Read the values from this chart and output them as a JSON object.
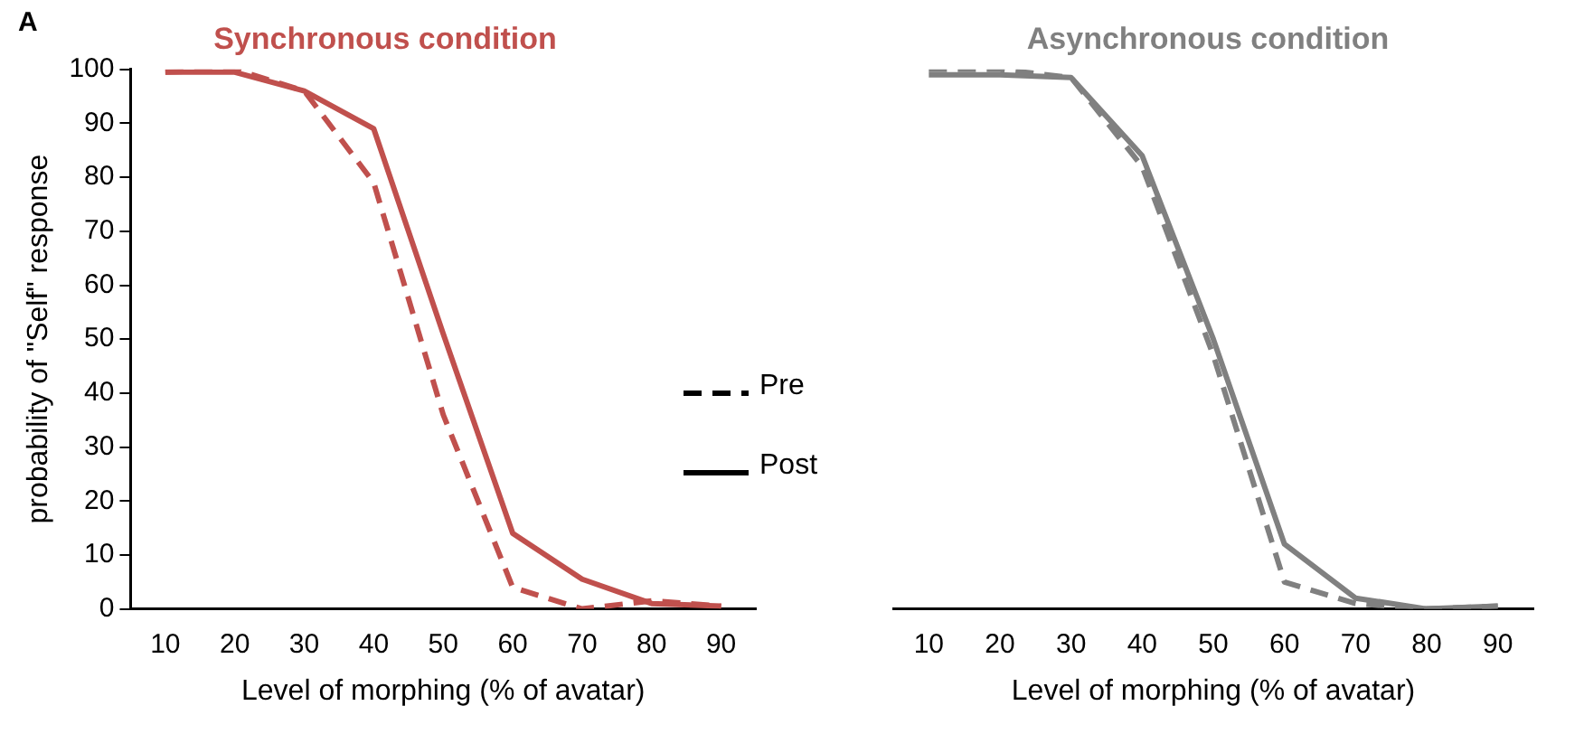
{
  "chart_data": [
    {
      "type": "line",
      "title": "Synchronous condition",
      "annotations": [
        "A"
      ],
      "xlabel": "Level of morphing (% of avatar)",
      "ylabel": "probability of \"Self\" response",
      "categories": [
        "10",
        "20",
        "30",
        "40",
        "50",
        "60",
        "70",
        "80",
        "90"
      ],
      "series": [
        {
          "name": "Pre",
          "color": "#c0504d",
          "line_style": "dashed",
          "values": [
            99.5,
            100,
            96,
            79,
            36,
            4,
            0,
            1.5,
            0.5
          ]
        },
        {
          "name": "Post",
          "color": "#c0504d",
          "line_style": "solid",
          "values": [
            99.5,
            99.5,
            96,
            89,
            51,
            14,
            5.5,
            1,
            0.5
          ]
        }
      ],
      "ylim": [
        0,
        100
      ],
      "yticks": [
        0,
        10,
        20,
        30,
        40,
        50,
        60,
        70,
        80,
        90,
        100
      ],
      "grid": false,
      "legend": "right",
      "marker": "none"
    },
    {
      "type": "line",
      "title": "Asynchronous condition",
      "xlabel": "Level of morphing (% of avatar)",
      "categories": [
        "10",
        "20",
        "30",
        "40",
        "50",
        "60",
        "70",
        "80",
        "90"
      ],
      "series": [
        {
          "color": "#808080",
          "line_style": "dashed",
          "values": [
            100,
            100,
            98.5,
            82,
            47,
            5,
            1,
            0,
            0.5
          ]
        },
        {
          "color": "#808080",
          "line_style": "solid",
          "values": [
            99,
            99,
            98.5,
            84,
            50,
            12,
            2,
            0,
            0.5
          ]
        }
      ],
      "ylim": [
        0,
        100
      ],
      "yticks": [
        0,
        10,
        20,
        30,
        40,
        50,
        60,
        70,
        80,
        90,
        100
      ],
      "grid": false,
      "tick_labels": "x",
      "marker": "none"
    }
  ]
}
